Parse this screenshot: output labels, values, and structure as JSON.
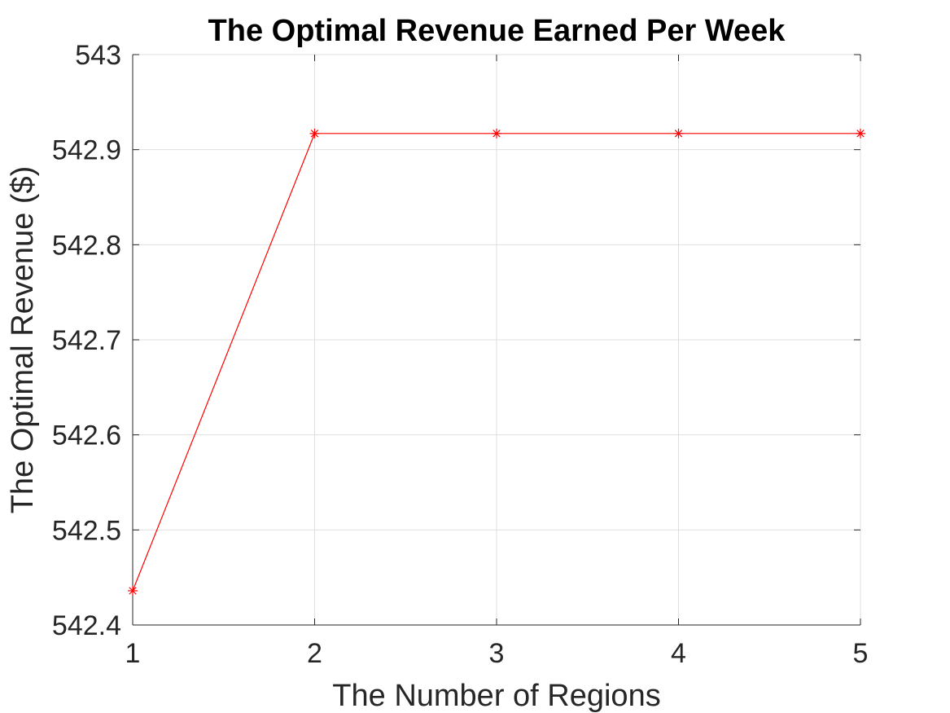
{
  "chart_data": {
    "type": "line",
    "title": "The Optimal Revenue Earned Per Week",
    "xlabel": "The Number of Regions",
    "ylabel": "The Optimal Revenue ($)",
    "x": [
      1,
      2,
      3,
      4,
      5
    ],
    "series": [
      {
        "values": [
          542.436,
          542.917,
          542.917,
          542.917,
          542.917
        ],
        "color": "#ff0000",
        "marker": "asterisk"
      }
    ],
    "xlim": [
      1,
      5
    ],
    "ylim": [
      542.4,
      543
    ],
    "xticks": [
      "1",
      "2",
      "3",
      "4",
      "5"
    ],
    "yticks": [
      "542.4",
      "542.5",
      "542.6",
      "542.7",
      "542.8",
      "542.9",
      "543"
    ],
    "grid": true
  }
}
